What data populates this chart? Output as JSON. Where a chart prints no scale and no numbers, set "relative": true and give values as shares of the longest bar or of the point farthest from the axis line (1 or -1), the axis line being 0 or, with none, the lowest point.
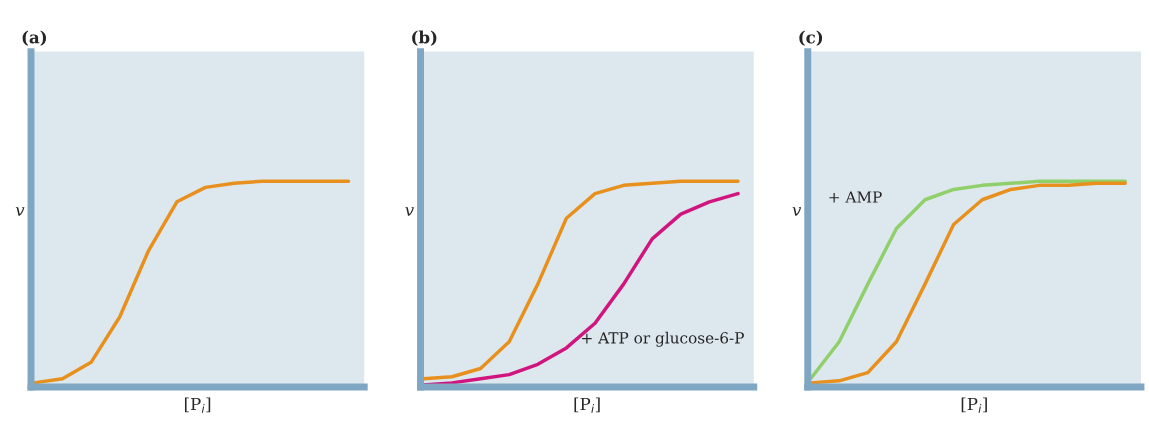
{
  "chart_data": [
    {
      "type": "line",
      "title": "(a)",
      "xlabel": "[P$_{i}$]",
      "ylabel": "v",
      "relative": true,
      "categories": [
        null,
        null,
        null,
        null,
        null,
        null,
        null,
        null,
        null,
        null,
        null,
        null
      ],
      "series": [
        {
          "color": "#e8901e",
          "values": [
            0.02,
            0.04,
            0.12,
            0.34,
            0.66,
            0.9,
            0.97,
            0.99,
            1,
            1,
            1,
            1
          ]
        }
      ]
    },
    {
      "type": "line",
      "title": "(b)",
      "xlabel": "[P$_{i}$]",
      "ylabel": "v",
      "relative": true,
      "categories": [
        null,
        null,
        null,
        null,
        null,
        null,
        null,
        null,
        null,
        null,
        null,
        null
      ],
      "annotations": [
        "+ ATP or glucose-6-P"
      ],
      "series": [
        {
          "color": "#e8901e",
          "values": [
            0.04,
            0.05,
            0.09,
            0.22,
            0.5,
            0.82,
            0.94,
            0.98,
            0.99,
            1,
            1,
            1
          ]
        },
        {
          "color": "#d0157e",
          "values": [
            0.01,
            0.02,
            0.04,
            0.06,
            0.11,
            0.19,
            0.31,
            0.5,
            0.72,
            0.84,
            0.9,
            0.94
          ]
        }
      ]
    },
    {
      "type": "line",
      "title": "(c)",
      "xlabel": "[P$_{i}$]",
      "ylabel": "v",
      "relative": true,
      "categories": [
        null,
        null,
        null,
        null,
        null,
        null,
        null,
        null,
        null,
        null,
        null,
        null
      ],
      "annotations": [
        "+ AMP"
      ],
      "series": [
        {
          "color": "#8fd06a",
          "values": [
            0.04,
            0.22,
            0.5,
            0.77,
            0.91,
            0.96,
            0.98,
            0.99,
            1,
            1,
            1,
            1
          ]
        },
        {
          "color": "#e8901e",
          "values": [
            0.02,
            0.03,
            0.07,
            0.22,
            0.5,
            0.79,
            0.91,
            0.96,
            0.98,
            0.98,
            0.99,
            0.99
          ]
        }
      ]
    }
  ]
}
